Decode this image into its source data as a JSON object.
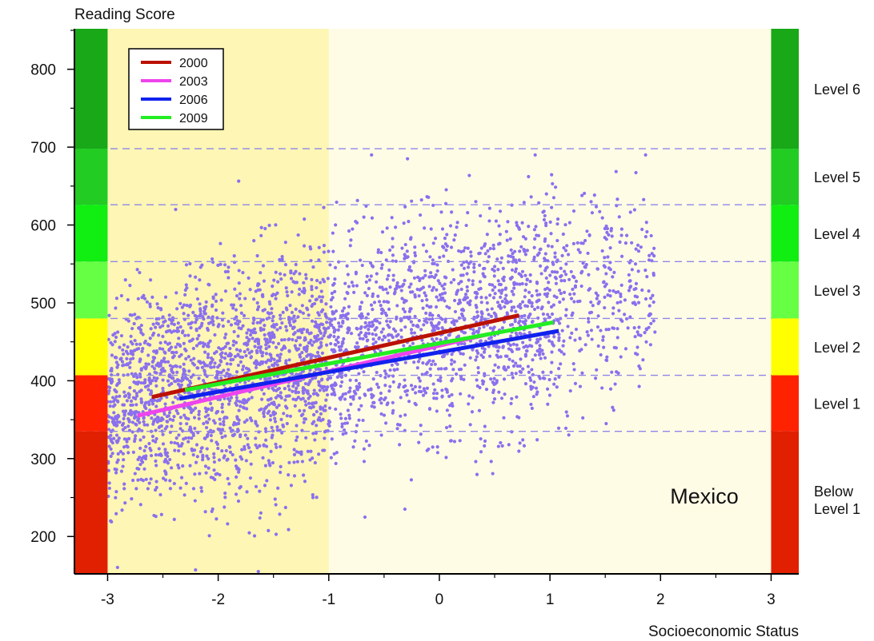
{
  "chart_data": {
    "type": "scatter",
    "ylabel": "Reading Score",
    "xlabel": "Socioeconomic Status",
    "annotation": "Mexico",
    "xlim": [
      -3.3,
      3.25
    ],
    "ylim": [
      152,
      852
    ],
    "x_ticks": [
      -3,
      -2,
      -1,
      0,
      1,
      2,
      3
    ],
    "x_minor_ticks": [
      -2.5,
      -1.5,
      -0.5,
      0.5,
      1.5,
      2.5
    ],
    "y_ticks": [
      200,
      300,
      400,
      500,
      600,
      700,
      800
    ],
    "level_lines": [
      335,
      407,
      480,
      553,
      626,
      698
    ],
    "shaded_band_x": [
      -3,
      -1
    ],
    "levels": [
      {
        "label": "Level 6",
        "from": 698,
        "to": 852,
        "color": "#18a818"
      },
      {
        "label": "Level 5",
        "from": 626,
        "to": 698,
        "color": "#22cc22"
      },
      {
        "label": "Level 4",
        "from": 553,
        "to": 626,
        "color": "#11ee11"
      },
      {
        "label": "Level 3",
        "from": 480,
        "to": 553,
        "color": "#66ff44"
      },
      {
        "label": "Level 2",
        "from": 407,
        "to": 480,
        "color": "#ffff00"
      },
      {
        "label": "Level 1",
        "from": 335,
        "to": 407,
        "color": "#ff2200"
      },
      {
        "label": "Below Level 1",
        "from": 152,
        "to": 335,
        "color": "#e02000"
      }
    ],
    "series": [
      {
        "name": "2000",
        "color": "#bb1100",
        "x": [
          -2.6,
          0.72
        ],
        "y": [
          379,
          484
        ]
      },
      {
        "name": "2003",
        "color": "#ee44ee",
        "x": [
          -2.73,
          0.45
        ],
        "y": [
          355,
          460
        ]
      },
      {
        "name": "2006",
        "color": "#1122ee",
        "x": [
          -2.35,
          1.08
        ],
        "y": [
          377,
          464
        ]
      },
      {
        "name": "2009",
        "color": "#22ee22",
        "x": [
          -2.3,
          1.03
        ],
        "y": [
          388,
          475
        ]
      }
    ],
    "scatter_color": "#8a70ee",
    "scatter_count": 3600
  }
}
